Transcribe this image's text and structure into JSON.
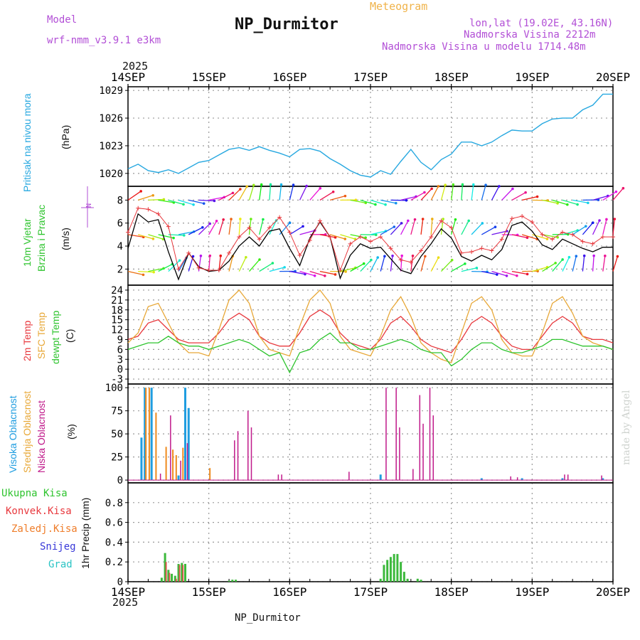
{
  "header": {
    "model_label": "Model",
    "model_name": "wrf-nmm_v3.9.1  e3km",
    "title": "NP_Durmitor",
    "meteogram": "Meteogram",
    "lonlat": "lon,lat (19.02E, 43.16N)",
    "altitude": "Nadmorska Visina 2212m",
    "model_altitude": "Nadmorska Visina u modelu 1714.48m"
  },
  "footer": {
    "station": "NP_Durmitor",
    "credit": "made by Angel"
  },
  "time_axis": {
    "year": "2025",
    "labels": [
      "14SEP",
      "15SEP",
      "16SEP",
      "17SEP",
      "18SEP",
      "19SEP",
      "20SEP"
    ],
    "hours_per_day": 24
  },
  "panel_labels": {
    "pressure": [
      "Pritisak na nivou mora",
      "(hPa)"
    ],
    "wind": [
      "10m Vjetar",
      "Brzina i Pravac",
      "(m/s)"
    ],
    "wind_compass": "N",
    "temp": [
      "2m Temp",
      "SFC Temp",
      "dewpt Temp",
      "(C)"
    ],
    "cloud": [
      "Visoka Oblacnost",
      "Srednja Oblacnost",
      "Niska Oblacnost",
      "(%)"
    ],
    "precip_legend": [
      "Ukupna Kisa",
      "Konvek.Kisa",
      "Zaledj.Kisa",
      "Snijeg",
      "Grad"
    ],
    "precip_axis": "1hr Precip (mm)"
  },
  "colors": {
    "pressure": "#27a8e0",
    "wind_speed": "#000000",
    "wind_gust": "#e8383d",
    "t2m": "#e8383d",
    "tsfc": "#e8a838",
    "dewpt": "#2ec42e",
    "cloud_high": "#1f9de0",
    "cloud_mid": "#ef8a1e",
    "cloud_low": "#c0198a",
    "rain_total": "#3cb93c",
    "rain_conv": "#e8383d",
    "rain_frz": "#ef7d2a",
    "snow": "#3838d8",
    "hail": "#2ac4c4",
    "label_pressure": "#27a8e0",
    "label_wind_a": "#2ec42e",
    "label_wind_b": "#2ec42e",
    "label_t2m": "#e8383d",
    "label_tsfc": "#e8a838",
    "label_dewpt": "#2ec42e"
  },
  "chart_data": [
    {
      "type": "line",
      "panel": "pressure",
      "title": "Pritisak na nivou mora",
      "ylabel": "(hPa)",
      "ylim": [
        1018.6,
        1029.4
      ],
      "yticks": [
        1020,
        1023,
        1026,
        1029
      ],
      "x": [
        0,
        3,
        6,
        9,
        12,
        15,
        18,
        21,
        24,
        27,
        30,
        33,
        36,
        39,
        42,
        45,
        48,
        51,
        54,
        57,
        60,
        63,
        66,
        69,
        72,
        75,
        78,
        81,
        84,
        87,
        90,
        93,
        96,
        99,
        102,
        105,
        108,
        111,
        114,
        117,
        120,
        123,
        126,
        129,
        132,
        135,
        138,
        141,
        144
      ],
      "values": [
        1020.5,
        1021.0,
        1020.3,
        1020.1,
        1020.4,
        1020.0,
        1020.6,
        1021.2,
        1021.4,
        1022.0,
        1022.6,
        1022.8,
        1022.5,
        1022.9,
        1022.5,
        1022.2,
        1021.8,
        1022.6,
        1022.7,
        1022.4,
        1021.6,
        1021.0,
        1020.3,
        1019.8,
        1019.6,
        1020.3,
        1019.9,
        1021.3,
        1022.6,
        1021.2,
        1020.4,
        1021.5,
        1022.1,
        1023.4,
        1023.4,
        1023.0,
        1023.4,
        1024.1,
        1024.7,
        1024.6,
        1024.6,
        1025.4,
        1025.9,
        1026.0,
        1026.0,
        1026.9,
        1027.4,
        1028.6,
        1028.6
      ]
    },
    {
      "type": "line",
      "panel": "wind",
      "title": "10m Vjetar Brzina i Pravac",
      "ylabel": "(m/s)",
      "ylim": [
        0.6,
        9.2
      ],
      "yticks": [
        2,
        4,
        6,
        8
      ],
      "series": [
        {
          "name": "speed",
          "x": [
            0,
            3,
            6,
            9,
            12,
            15,
            18,
            21,
            24,
            27,
            30,
            33,
            36,
            39,
            42,
            45,
            48,
            51,
            54,
            57,
            60,
            63,
            66,
            69,
            72,
            75,
            78,
            81,
            84,
            87,
            90,
            93,
            96,
            99,
            102,
            105,
            108,
            111,
            114,
            117,
            120,
            123,
            126,
            129,
            132,
            135,
            138,
            141,
            144
          ],
          "values": [
            3.8,
            6.8,
            6.1,
            6.3,
            3.5,
            1.1,
            3.4,
            2.2,
            1.8,
            1.9,
            2.7,
            4.0,
            4.8,
            4.0,
            5.3,
            5.5,
            3.8,
            2.3,
            4.7,
            6.1,
            4.8,
            1.2,
            3.2,
            4.2,
            3.8,
            3.9,
            2.9,
            1.9,
            1.6,
            3.1,
            4.2,
            5.5,
            4.7,
            3.1,
            2.7,
            3.2,
            2.8,
            3.7,
            5.8,
            6.1,
            5.3,
            4.1,
            3.7,
            4.6,
            4.2,
            3.8,
            3.5,
            3.9,
            3.9
          ]
        },
        {
          "name": "gust",
          "x": [
            0,
            3,
            6,
            9,
            12,
            15,
            18,
            21,
            24,
            27,
            30,
            33,
            36,
            39,
            42,
            45,
            48,
            51,
            54,
            57,
            60,
            63,
            66,
            69,
            72,
            75,
            78,
            81,
            84,
            87,
            90,
            93,
            96,
            99,
            102,
            105,
            108,
            111,
            114,
            117,
            120,
            123,
            126,
            129,
            132,
            135,
            138,
            141,
            144
          ],
          "values": [
            5.2,
            7.3,
            7.2,
            6.8,
            5.7,
            2.0,
            3.4,
            2.1,
            1.9,
            1.9,
            3.4,
            4.8,
            5.6,
            4.6,
            5.6,
            6.5,
            5.2,
            3.2,
            4.5,
            6.2,
            4.8,
            1.9,
            4.2,
            4.8,
            4.4,
            4.8,
            3.8,
            2.8,
            2.6,
            3.6,
            4.8,
            6.2,
            5.6,
            3.4,
            3.5,
            3.8,
            3.6,
            4.6,
            6.4,
            6.6,
            6.1,
            5.0,
            4.6,
            5.2,
            5.0,
            4.4,
            4.2,
            4.8,
            4.8
          ]
        }
      ]
    },
    {
      "type": "line",
      "panel": "temp",
      "title": "2m / SFC / dewpt Temp",
      "ylabel": "(C)",
      "ylim": [
        -4.5,
        25.5
      ],
      "yticks": [
        -3,
        0,
        3,
        6,
        9,
        12,
        15,
        18,
        21,
        24
      ],
      "series": [
        {
          "name": "2m Temp",
          "x": [
            0,
            3,
            6,
            9,
            12,
            15,
            18,
            21,
            24,
            27,
            30,
            33,
            36,
            39,
            42,
            45,
            48,
            51,
            54,
            57,
            60,
            63,
            66,
            69,
            72,
            75,
            78,
            81,
            84,
            87,
            90,
            93,
            96,
            99,
            102,
            105,
            108,
            111,
            114,
            117,
            120,
            123,
            126,
            129,
            132,
            135,
            138,
            141,
            144
          ],
          "values": [
            9,
            10,
            14,
            15,
            12,
            9,
            8,
            8,
            8,
            11,
            15,
            17,
            15,
            10,
            8,
            7,
            7,
            11,
            16,
            18,
            16,
            11,
            8,
            7,
            6,
            9,
            14,
            16,
            13,
            9,
            7,
            6,
            5,
            9,
            14,
            16,
            14,
            10,
            7,
            6,
            6,
            10,
            14,
            16,
            14,
            10,
            9,
            9,
            8
          ]
        },
        {
          "name": "SFC Temp",
          "x": [
            0,
            3,
            6,
            9,
            12,
            15,
            18,
            21,
            24,
            27,
            30,
            33,
            36,
            39,
            42,
            45,
            48,
            51,
            54,
            57,
            60,
            63,
            66,
            69,
            72,
            75,
            78,
            81,
            84,
            87,
            90,
            93,
            96,
            99,
            102,
            105,
            108,
            111,
            114,
            117,
            120,
            123,
            126,
            129,
            132,
            135,
            138,
            141,
            144
          ],
          "values": [
            8,
            11,
            19,
            20,
            14,
            8,
            5,
            5,
            4,
            12,
            21,
            24,
            20,
            10,
            6,
            5,
            4,
            13,
            21,
            24,
            20,
            10,
            6,
            5,
            4,
            10,
            18,
            22,
            16,
            8,
            5,
            3,
            2,
            11,
            20,
            22,
            18,
            9,
            5,
            4,
            4,
            11,
            20,
            22,
            17,
            10,
            8,
            7,
            6
          ]
        },
        {
          "name": "dewpt Temp",
          "x": [
            0,
            3,
            6,
            9,
            12,
            15,
            18,
            21,
            24,
            27,
            30,
            33,
            36,
            39,
            42,
            45,
            48,
            51,
            54,
            57,
            60,
            63,
            66,
            69,
            72,
            75,
            78,
            81,
            84,
            87,
            90,
            93,
            96,
            99,
            102,
            105,
            108,
            111,
            114,
            117,
            120,
            123,
            126,
            129,
            132,
            135,
            138,
            141,
            144
          ],
          "values": [
            6,
            7,
            8,
            8,
            10,
            8,
            7,
            7,
            6,
            7,
            8,
            9,
            8,
            6,
            4,
            5,
            -1,
            5,
            6,
            9,
            11,
            8,
            8,
            6,
            6,
            7,
            8,
            9,
            8,
            6,
            5,
            5,
            1,
            3,
            6,
            8,
            8,
            6,
            5,
            5,
            6,
            7,
            9,
            9,
            8,
            7,
            7,
            7,
            6
          ]
        }
      ]
    },
    {
      "type": "bar",
      "panel": "cloud",
      "title": "Oblacnost",
      "ylabel": "(%)",
      "ylim": [
        -3,
        104
      ],
      "yticks": [
        0,
        25,
        50,
        75,
        100
      ],
      "series": [
        {
          "name": "Visoka Oblacnost",
          "x": [
            4,
            5,
            7,
            15,
            17,
            18,
            75,
            105,
            117,
            129,
            141
          ],
          "values": [
            46,
            100,
            100,
            5,
            100,
            78,
            6,
            2,
            2,
            2,
            2
          ]
        },
        {
          "name": "Srednja Oblacnost",
          "x": [
            5,
            6,
            8,
            11,
            13,
            14,
            16,
            24
          ],
          "values": [
            100,
            100,
            73,
            36,
            33,
            27,
            35,
            13
          ]
        },
        {
          "name": "Niska Oblacnost",
          "x": [
            9,
            12,
            15,
            17,
            31,
            32,
            35,
            36,
            44,
            45,
            65,
            76,
            79,
            80,
            84,
            86,
            87,
            89,
            90,
            113,
            115,
            129,
            130,
            140
          ],
          "values": [
            7,
            70,
            21,
            40,
            43,
            53,
            75,
            57,
            6,
            6,
            9,
            100,
            100,
            57,
            12,
            92,
            61,
            100,
            70,
            4,
            3,
            6,
            6,
            5
          ]
        }
      ]
    },
    {
      "type": "bar",
      "panel": "precip",
      "title": "1hr Precip",
      "ylabel": "1hr Precip (mm)",
      "ylim": [
        0,
        1.0
      ],
      "yticks": [
        0,
        0.2,
        0.4,
        0.6,
        0.8
      ],
      "series": [
        {
          "name": "Ukupna Kisa",
          "x": [
            10,
            11,
            12,
            13,
            14,
            15,
            16,
            17,
            30,
            31,
            32,
            75,
            76,
            77,
            78,
            79,
            80,
            81,
            82,
            83,
            86,
            87
          ],
          "values": [
            0.04,
            0.29,
            0.12,
            0.08,
            0.06,
            0.18,
            0.19,
            0.18,
            0.01,
            0.02,
            0.02,
            0.03,
            0.17,
            0.22,
            0.25,
            0.28,
            0.28,
            0.2,
            0.1,
            0.03,
            0.03,
            0.02
          ]
        },
        {
          "name": "Konvek.Kisa",
          "x": [
            11,
            12,
            14,
            15,
            16
          ],
          "values": [
            0.2,
            0.09,
            0.03,
            0.17,
            0.17
          ]
        }
      ]
    }
  ]
}
